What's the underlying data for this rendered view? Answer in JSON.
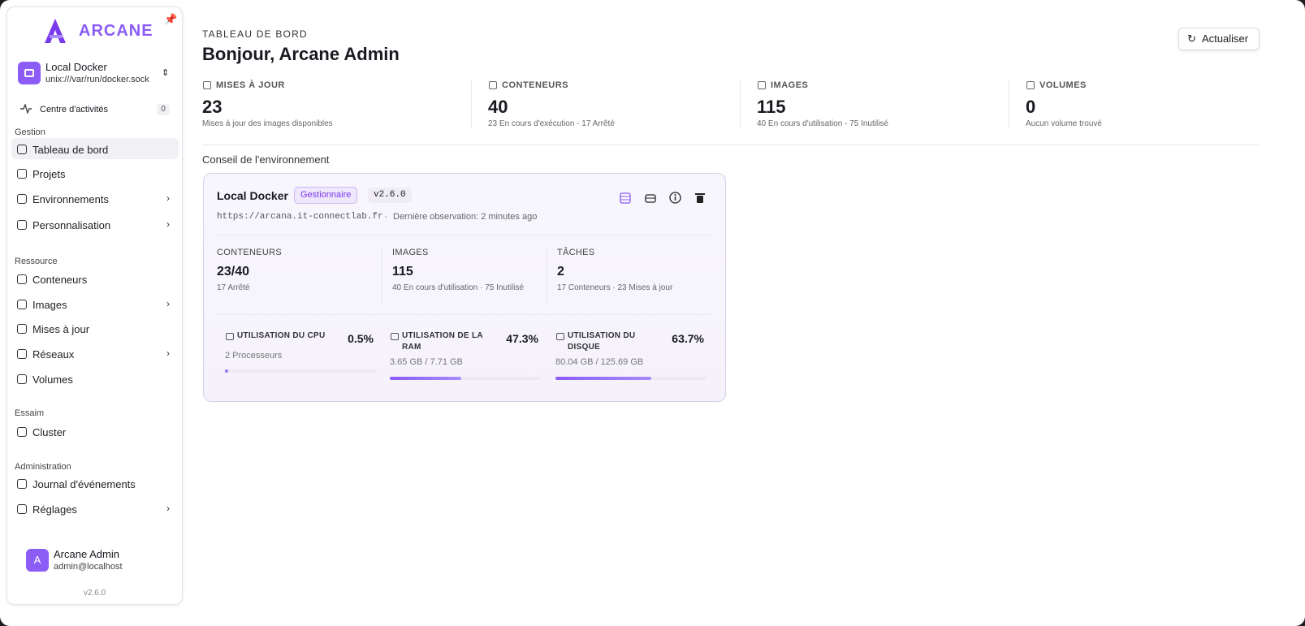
{
  "sidebar": {
    "logo": "ARCANE",
    "environment": {
      "name": "Local Docker",
      "socket": "unix:///var/run/docker.sock"
    },
    "activity": {
      "label": "Centre d'activités",
      "count": 0
    },
    "sections": [
      {
        "title": "Gestion",
        "items": [
          "Tableau de bord",
          "Projets",
          "Environnements",
          "Personnalisation"
        ]
      },
      {
        "title": "Ressource",
        "items": [
          "Conteneurs",
          "Images",
          "Mises à jour",
          "Réseaux",
          "Volumes"
        ]
      },
      {
        "title": "Essaim",
        "items": [
          "Cluster"
        ]
      },
      {
        "title": "Administration",
        "items": [
          "Journal d'événements",
          "Réglages"
        ]
      }
    ],
    "user": {
      "initial": "A",
      "name": "Arcane Admin",
      "email": "admin@localhost"
    },
    "version": "v2.6.0"
  },
  "header": {
    "eyebrow": "TABLEAU DE BORD",
    "title": "Bonjour, Arcane Admin",
    "refresh": "Actualiser"
  },
  "stats": [
    {
      "label": "MISES À JOUR",
      "value": 23,
      "caption": "Mises à jour des images disponibles"
    },
    {
      "label": "CONTENEURS",
      "value": 40,
      "caption": "23 En cours d'exécution - 17 Arrêté"
    },
    {
      "label": "IMAGES",
      "value": 115,
      "caption": "40 En cours d'utilisation - 75 Inutilisé"
    },
    {
      "label": "VOLUMES",
      "value": 0,
      "caption": "Aucun volume trouvé"
    }
  ],
  "section_title": "Conseil de l'environnement",
  "env_card": {
    "name": "Local Docker",
    "role": "Gestionnaire",
    "version": "v2.6.0",
    "url": "https://arcana.it-connectlab.fr",
    "last_seen": "Dernière observation: 2 minutes ago",
    "metrics": [
      {
        "label": "CONTENEURS",
        "value": "23/40",
        "caption": "17 Arrêté"
      },
      {
        "label": "IMAGES",
        "value": 115,
        "caption": "40 En cours d'utilisation · 75 Inutilisé"
      },
      {
        "label": "TÂCHES",
        "value": 2,
        "caption": "17 Conteneurs · 23 Mises à jour"
      }
    ],
    "usage": [
      {
        "label": "UTILISATION DU CPU",
        "value": 0.5,
        "value_label": "0.5%",
        "detail": "2 Processeurs"
      },
      {
        "label": "UTILISATION DE LA RAM",
        "value": 47.3,
        "value_label": "47.3%",
        "detail": "3.65 GB / 7.71 GB"
      },
      {
        "label": "UTILISATION DU DISQUE",
        "value": 63.7,
        "value_label": "63.7%",
        "detail": "80.04 GB / 125.69 GB"
      }
    ]
  }
}
